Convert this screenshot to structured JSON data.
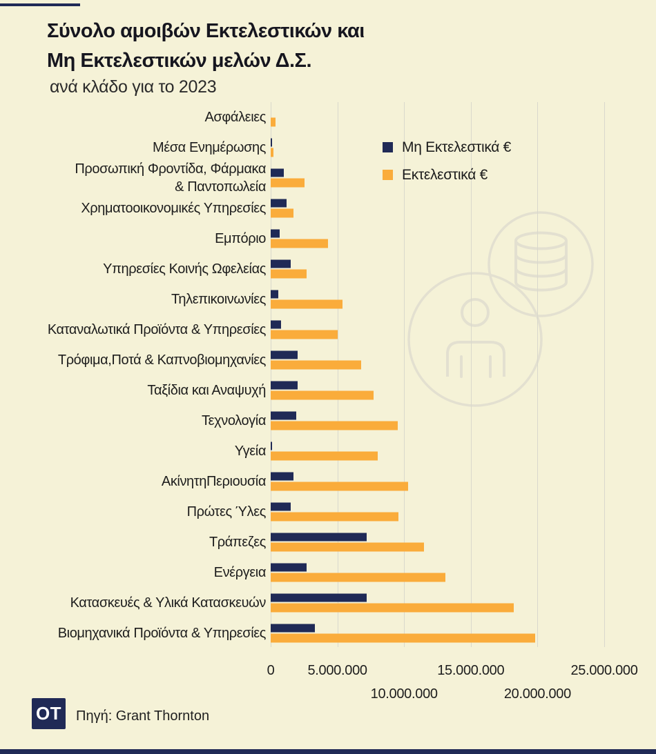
{
  "style": {
    "background": "#f5f2d7",
    "navy": "#202a56",
    "orange": "#faac3b",
    "gridline": "#d9d8cc",
    "watermark": "#e3e0d0"
  },
  "header": {
    "title": "Σύνολο αμοιβών Εκτελεστικών και\nΜη Εκτελεστικών μελών Δ.Σ.",
    "subtitle": "ανά κλάδο για το 2023"
  },
  "legend": {
    "items": [
      {
        "label": "Μη Εκτελεστικά €",
        "color": "#202a56"
      },
      {
        "label": "Εκτελεστικά €",
        "color": "#faac3b"
      }
    ]
  },
  "chart_data": {
    "type": "bar",
    "orientation": "horizontal",
    "title": "Σύνολο αμοιβών Εκτελεστικών και Μη Εκτελεστικών μελών Δ.Σ. ανά κλάδο για το 2023",
    "categories": [
      "Ασφάλειες",
      "Μέσα Ενημέρωσης",
      "Προσωπική Φροντίδα, Φάρμακα\n& Παντοπωλεία",
      "Χρηματοοικονομικές Υπηρεσίες",
      "Εμπόριο",
      "Υπηρεσίες Κοινής Ωφελείας",
      "Τηλεπικοινωνίες",
      "Καταναλωτικά Προϊόντα & Υπηρεσίες",
      "Τρόφιμα,Ποτά & Καπνοβιομηχανίες",
      "Ταξίδια και Αναψυχή",
      "Τεχνολογία",
      "Υγεία",
      "ΑκίνητηΠεριουσία",
      "Πρώτες Ύλες",
      "Τράπεζες",
      "Ενέργεια",
      "Κατασκευές & Υλικά Κατασκευών",
      "Βιομηχανικά Προϊόντα & Υπηρεσίες"
    ],
    "series": [
      {
        "name": "Μη Εκτελεστικά €",
        "color": "#202a56",
        "values": [
          0,
          100000,
          1000000,
          1200000,
          650000,
          1500000,
          550000,
          800000,
          2000000,
          2000000,
          1900000,
          100000,
          1700000,
          1500000,
          7200000,
          2700000,
          7200000,
          3300000
        ]
      },
      {
        "name": "Εκτελεστικά €",
        "color": "#faac3b",
        "values": [
          350000,
          200000,
          2550000,
          1700000,
          4300000,
          2700000,
          5400000,
          5000000,
          6800000,
          7700000,
          9500000,
          8000000,
          10300000,
          9600000,
          11500000,
          13100000,
          18200000,
          19800000
        ]
      }
    ],
    "xlim": [
      0,
      25000000
    ],
    "x_ticks": [
      0,
      5000000,
      10000000,
      15000000,
      20000000,
      25000000
    ],
    "x_tick_labels": [
      "0",
      "5.000.000",
      "10.000.000",
      "15.000.000",
      "20.000.000",
      "25.000.000"
    ],
    "grid": true,
    "legend_position": "inside-top-right"
  },
  "footer": {
    "logo_text": "OT",
    "source": "Πηγή: Grant Thornton"
  }
}
